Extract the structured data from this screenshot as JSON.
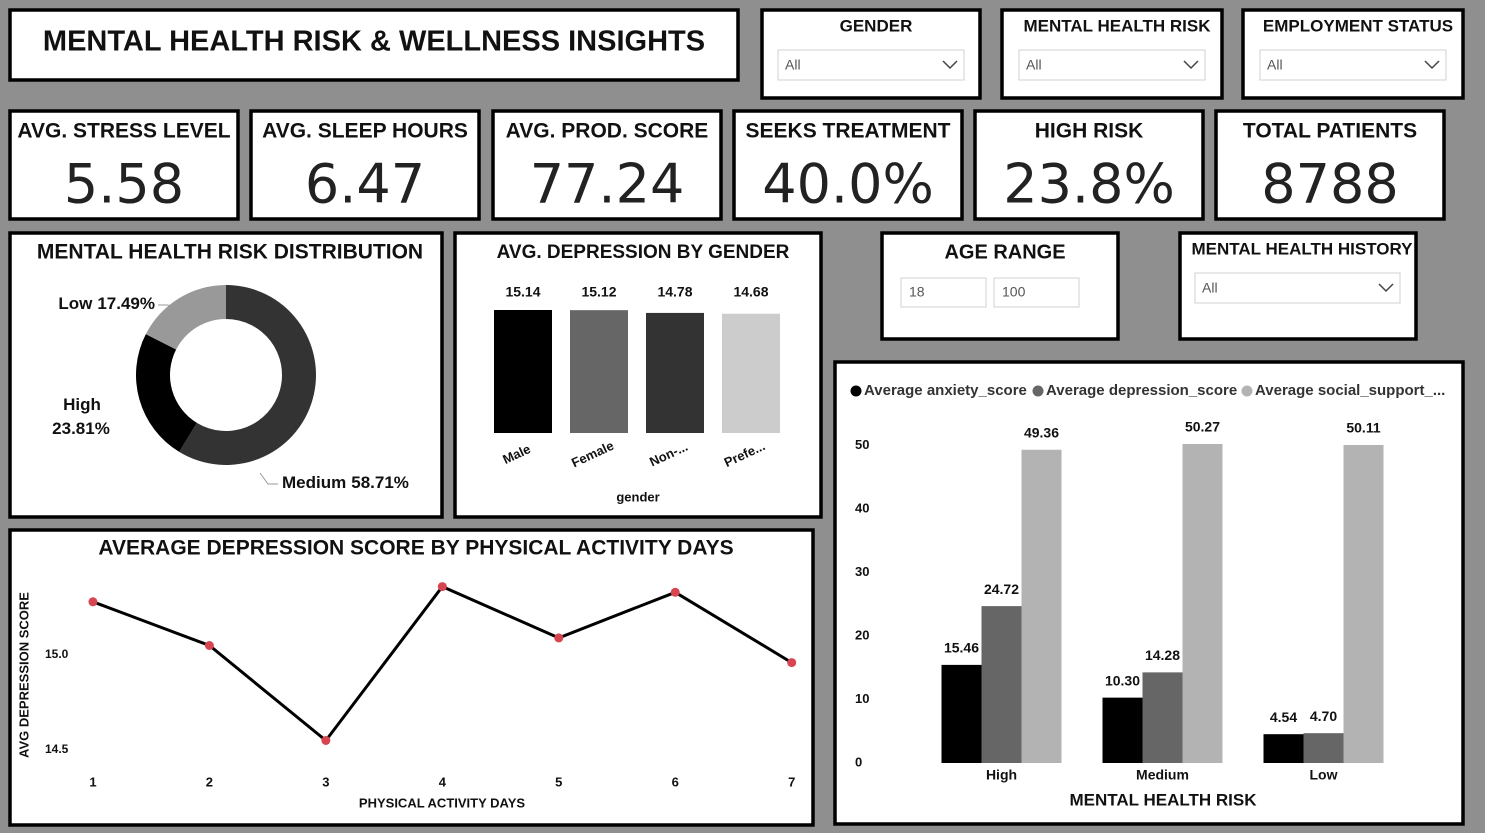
{
  "header": {
    "title": "MENTAL HEALTH RISK & WELLNESS INSIGHTS"
  },
  "filters": [
    {
      "label": "GENDER",
      "value": "All"
    },
    {
      "label": "MENTAL HEALTH RISK",
      "value": "All"
    },
    {
      "label": "EMPLOYMENT STATUS",
      "value": "All"
    },
    {
      "label": "MENTAL HEALTH HISTORY",
      "value": "All"
    }
  ],
  "age_range": {
    "label": "AGE RANGE",
    "min": "18",
    "max": "100"
  },
  "kpis": [
    {
      "label": "AVG. STRESS LEVEL",
      "value": "5.58"
    },
    {
      "label": "AVG. SLEEP HOURS",
      "value": "6.47"
    },
    {
      "label": "AVG. PROD. SCORE",
      "value": "77.24"
    },
    {
      "label": "SEEKS TREATMENT",
      "value": "40.0%"
    },
    {
      "label": "HIGH RISK",
      "value": "23.8%"
    },
    {
      "label": "TOTAL PATIENTS",
      "value": "8788"
    }
  ],
  "chart_data": [
    {
      "type": "pie",
      "title": "MENTAL HEALTH RISK DISTRIBUTION",
      "categories": [
        "Medium",
        "High",
        "Low"
      ],
      "values": [
        58.71,
        23.81,
        17.49
      ],
      "value_labels": [
        "58.71%",
        "23.81%",
        "17.49%"
      ],
      "colors": [
        "#333333",
        "#000000",
        "#999999"
      ]
    },
    {
      "type": "bar",
      "title": "AVG. DEPRESSION BY GENDER",
      "x_label": "gender",
      "categories": [
        "Male",
        "Female",
        "Non-...",
        "Prefe..."
      ],
      "values": [
        15.14,
        15.12,
        14.78,
        14.68
      ],
      "colors": [
        "#000000",
        "#666666",
        "#333333",
        "#cccccc"
      ]
    },
    {
      "type": "line",
      "title": "AVERAGE DEPRESSION SCORE BY PHYSICAL ACTIVITY DAYS",
      "x_label": "PHYSICAL ACTIVITY DAYS",
      "y_label": "AVG DEPRESSION SCORE",
      "x": [
        1,
        2,
        3,
        4,
        5,
        6,
        7
      ],
      "values": [
        15.28,
        15.05,
        14.55,
        15.36,
        15.09,
        15.33,
        14.96
      ],
      "color": "#000000",
      "marker_color": "#d64550",
      "xlim": [
        0.7,
        7.2
      ],
      "xticks": [
        1,
        2,
        3,
        4,
        5,
        6,
        7
      ],
      "ylim": [
        14.42,
        15.45
      ],
      "yticks": [
        {
          "value": 14.5,
          "label": "14.5"
        },
        {
          "value": 15,
          "label": "15.0"
        }
      ]
    },
    {
      "type": "bar",
      "x_label": "MENTAL HEALTH RISK",
      "categories": [
        "High",
        "Medium",
        "Low"
      ],
      "series": [
        {
          "name": "Average anxiety_score",
          "color": "#000000",
          "values": [
            15.46,
            10.3,
            4.54
          ],
          "value_labels": [
            "15.46",
            "10.30",
            "4.54"
          ]
        },
        {
          "name": "Average depression_score",
          "color": "#666666",
          "values": [
            24.72,
            14.28,
            4.7
          ],
          "value_labels": [
            "24.72",
            "14.28",
            "4.70"
          ]
        },
        {
          "name": "Average social_support_...",
          "color": "#b3b3b3",
          "values": [
            49.36,
            50.27,
            50.11
          ],
          "value_labels": [
            "49.36",
            "50.27",
            "50.11"
          ]
        }
      ],
      "ylim": [
        0,
        52
      ],
      "yticks": [
        0,
        10,
        20,
        30,
        40,
        50
      ]
    }
  ]
}
